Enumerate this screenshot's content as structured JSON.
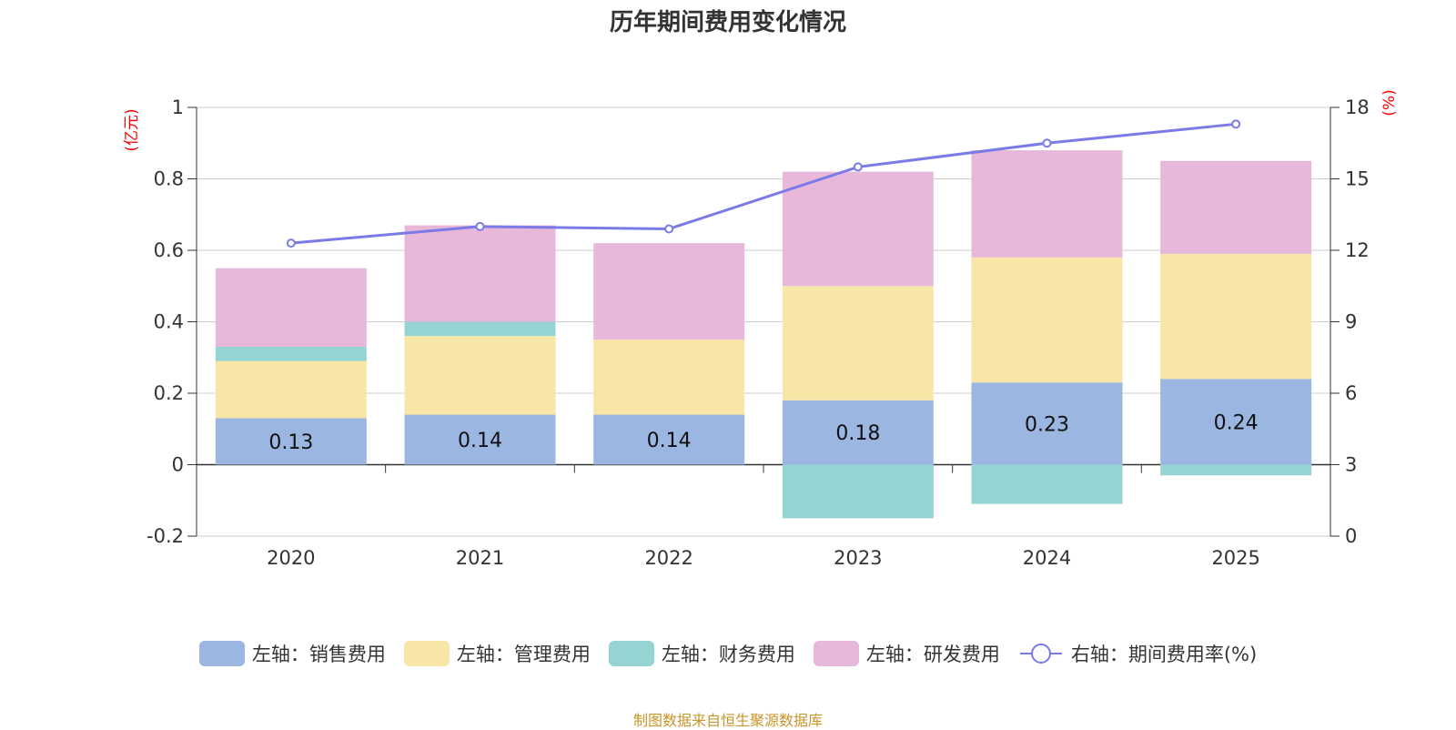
{
  "title": "历年期间费用变化情况",
  "source_note": "制图数据来自恒生聚源数据库",
  "colors": {
    "sales": "#9bb6e0",
    "admin": "#f8e6a7",
    "finance": "#96d4d4",
    "rd": "#e7b8d9",
    "rate": "#7b7be8"
  },
  "chart_data": {
    "type": "bar",
    "stacked": true,
    "categories": [
      "2020",
      "2021",
      "2022",
      "2023",
      "2024",
      "2025"
    ],
    "series": [
      {
        "name": "左轴：销售费用",
        "key": "sales",
        "axis": "left",
        "values": [
          0.13,
          0.14,
          0.14,
          0.18,
          0.23,
          0.24
        ]
      },
      {
        "name": "左轴：管理费用",
        "key": "admin",
        "axis": "left",
        "values": [
          0.16,
          0.22,
          0.21,
          0.32,
          0.35,
          0.35
        ]
      },
      {
        "name": "左轴：财务费用",
        "key": "finance",
        "axis": "left",
        "values": [
          0.04,
          0.04,
          0.0,
          -0.15,
          -0.11,
          -0.03
        ]
      },
      {
        "name": "左轴：研发费用",
        "key": "rd",
        "axis": "left",
        "values": [
          0.22,
          0.27,
          0.27,
          0.32,
          0.3,
          0.26
        ]
      },
      {
        "name": "右轴：期间费用率(%)",
        "key": "rate",
        "axis": "right",
        "type": "line",
        "values": [
          12.3,
          13.0,
          12.9,
          15.5,
          16.5,
          17.3
        ]
      }
    ],
    "data_labels": [
      "0.13",
      "0.14",
      "0.14",
      "0.18",
      "0.23",
      "0.24"
    ],
    "left_axis": {
      "label": "(亿元)",
      "min": -0.2,
      "max": 1,
      "ticks": [
        "-0.2",
        "0",
        "0.2",
        "0.4",
        "0.6",
        "0.8",
        "1"
      ]
    },
    "right_axis": {
      "label": "(%)",
      "min": 0,
      "max": 18,
      "ticks": [
        "0",
        "3",
        "6",
        "9",
        "12",
        "15",
        "18"
      ]
    },
    "grid": true,
    "legend_position": "bottom"
  }
}
